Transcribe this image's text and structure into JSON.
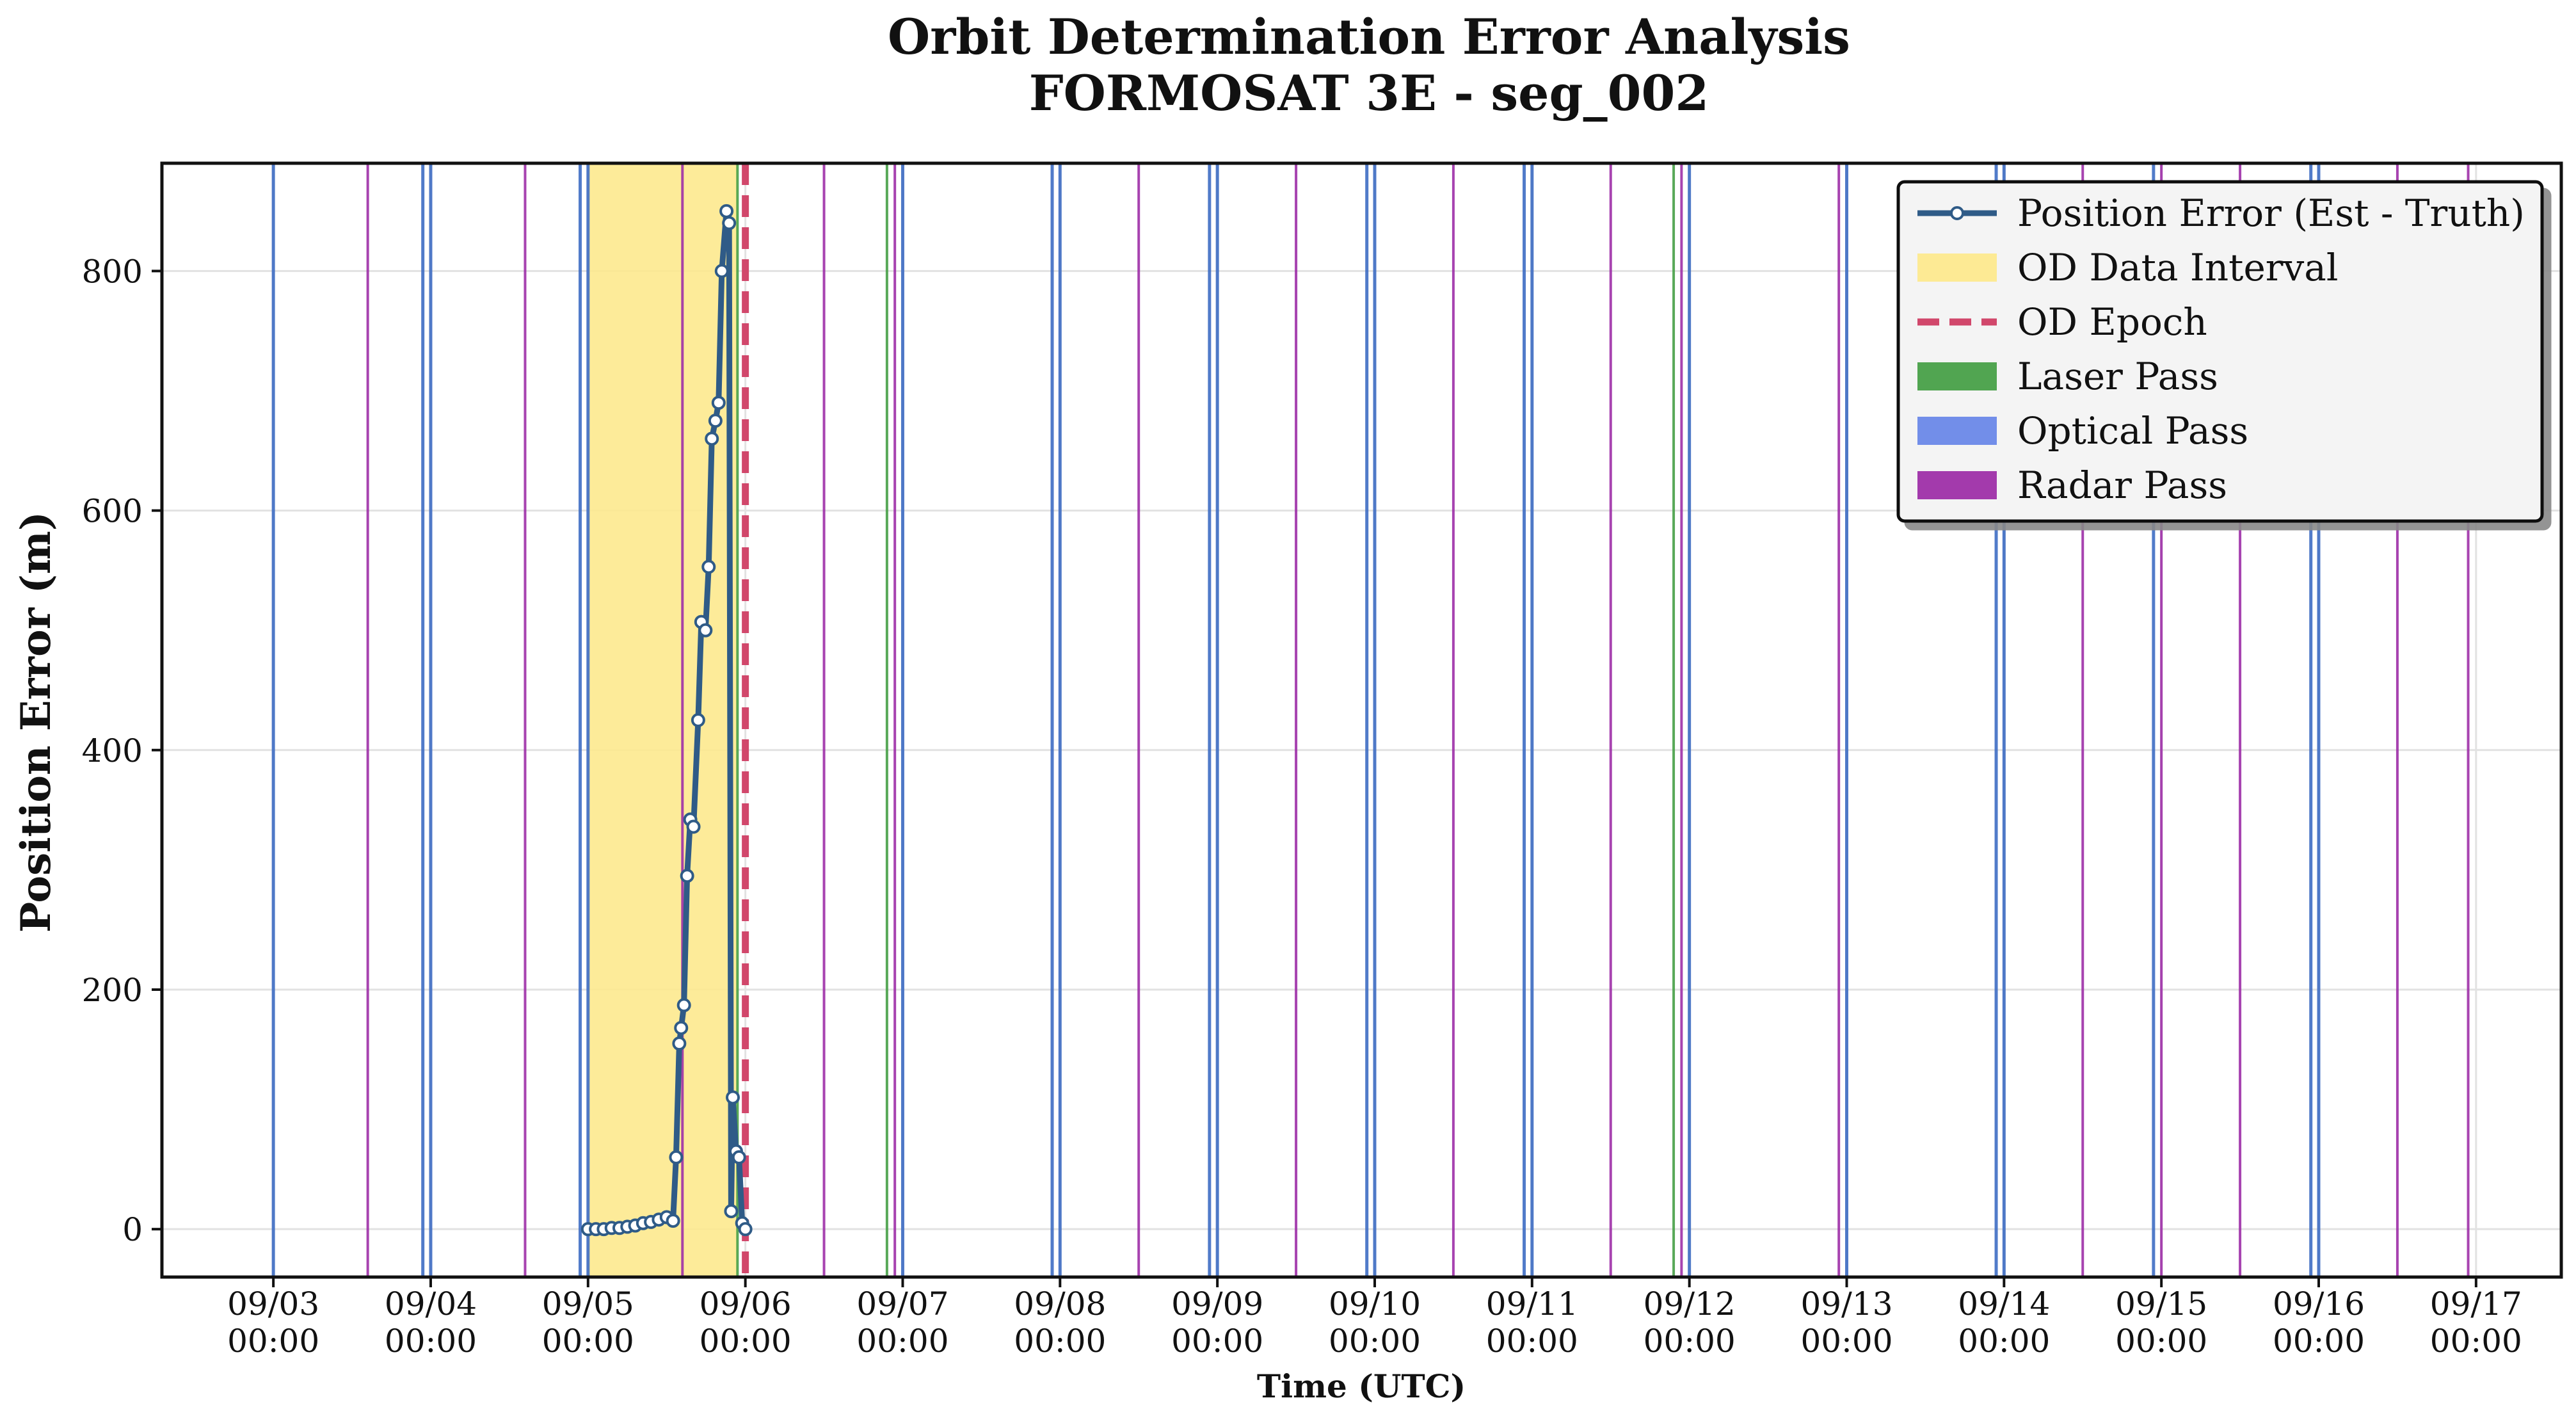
{
  "chart_data": {
    "type": "line",
    "title": "Orbit Determination Error Analysis",
    "subtitle": "FORMOSAT 3E - seg_002",
    "xlabel": "Time (UTC)",
    "ylabel": "Position Error (m)",
    "x_axis": {
      "type": "date",
      "start": "2024-09-02T07:00",
      "end": "2024-09-17T13:00"
    },
    "ylim": [
      -40,
      890
    ],
    "y_ticks": [
      0,
      200,
      400,
      600,
      800
    ],
    "x_ticks": [
      {
        "time": "2024-09-03T00:00",
        "date_label": "09/03",
        "time_label": "00:00"
      },
      {
        "time": "2024-09-04T00:00",
        "date_label": "09/04",
        "time_label": "00:00"
      },
      {
        "time": "2024-09-05T00:00",
        "date_label": "09/05",
        "time_label": "00:00"
      },
      {
        "time": "2024-09-06T00:00",
        "date_label": "09/06",
        "time_label": "00:00"
      },
      {
        "time": "2024-09-07T00:00",
        "date_label": "09/07",
        "time_label": "00:00"
      },
      {
        "time": "2024-09-08T00:00",
        "date_label": "09/08",
        "time_label": "00:00"
      },
      {
        "time": "2024-09-09T00:00",
        "date_label": "09/09",
        "time_label": "00:00"
      },
      {
        "time": "2024-09-10T00:00",
        "date_label": "09/10",
        "time_label": "00:00"
      },
      {
        "time": "2024-09-11T00:00",
        "date_label": "09/11",
        "time_label": "00:00"
      },
      {
        "time": "2024-09-12T00:00",
        "date_label": "09/12",
        "time_label": "00:00"
      },
      {
        "time": "2024-09-13T00:00",
        "date_label": "09/13",
        "time_label": "00:00"
      },
      {
        "time": "2024-09-14T00:00",
        "date_label": "09/14",
        "time_label": "00:00"
      },
      {
        "time": "2024-09-15T00:00",
        "date_label": "09/15",
        "time_label": "00:00"
      },
      {
        "time": "2024-09-16T00:00",
        "date_label": "09/16",
        "time_label": "00:00"
      },
      {
        "time": "2024-09-17T00:00",
        "date_label": "09/17",
        "time_label": "00:00"
      }
    ],
    "grid": true,
    "legend_position": "top-right",
    "legend": [
      {
        "label": "Position Error (Est - Truth)",
        "kind": "line-marker",
        "color": "#2f5b87"
      },
      {
        "label": "OD Data Interval",
        "kind": "patch",
        "color": "#fde98e"
      },
      {
        "label": "OD Epoch",
        "kind": "dashed-line",
        "color": "#d1476b"
      },
      {
        "label": "Laser Pass",
        "kind": "patch",
        "color": "#48a048"
      },
      {
        "label": "Optical Pass",
        "kind": "patch",
        "color": "#6a88e8"
      },
      {
        "label": "Radar Pass",
        "kind": "patch",
        "color": "#9e2fa8"
      }
    ],
    "od_data_interval": {
      "start": "2024-09-05T00:00",
      "end": "2024-09-05T22:48"
    },
    "od_epoch": "2024-09-06T00:00",
    "passes": {
      "optical": [
        "2024-09-03T00:00",
        "2024-09-03T22:48",
        "2024-09-04T00:00",
        "2024-09-04T22:48",
        "2024-09-05T00:00",
        "2024-09-07T00:00",
        "2024-09-07T22:48",
        "2024-09-08T00:00",
        "2024-09-08T22:48",
        "2024-09-09T00:00",
        "2024-09-09T22:48",
        "2024-09-10T00:00",
        "2024-09-10T22:48",
        "2024-09-11T00:00",
        "2024-09-12T00:00",
        "2024-09-13T00:00",
        "2024-09-13T22:48",
        "2024-09-14T00:00",
        "2024-09-14T22:48",
        "2024-09-15T22:48",
        "2024-09-16T00:00"
      ],
      "radar": [
        "2024-09-03T14:24",
        "2024-09-04T14:24",
        "2024-09-05T14:24",
        "2024-09-06T12:00",
        "2024-09-06T22:48",
        "2024-09-08T12:00",
        "2024-09-09T12:00",
        "2024-09-10T12:00",
        "2024-09-11T12:00",
        "2024-09-11T22:48",
        "2024-09-12T22:48",
        "2024-09-14T12:00",
        "2024-09-15T00:00",
        "2024-09-15T12:00",
        "2024-09-16T12:00",
        "2024-09-16T22:48"
      ],
      "laser": [
        "2024-09-05T22:48",
        "2024-09-06T21:36",
        "2024-09-11T21:36"
      ]
    },
    "series": [
      {
        "name": "Position Error (Est - Truth)",
        "x": [
          "2024-09-05T00:00",
          "2024-09-05T01:12",
          "2024-09-05T02:24",
          "2024-09-05T03:36",
          "2024-09-05T04:48",
          "2024-09-05T06:00",
          "2024-09-05T07:12",
          "2024-09-05T08:24",
          "2024-09-05T09:36",
          "2024-09-05T10:48",
          "2024-09-05T12:00",
          "2024-09-05T12:58",
          "2024-09-05T13:26",
          "2024-09-05T13:55",
          "2024-09-05T14:12",
          "2024-09-05T14:38",
          "2024-09-05T15:07",
          "2024-09-05T15:36",
          "2024-09-05T16:05",
          "2024-09-05T16:48",
          "2024-09-05T17:17",
          "2024-09-05T17:55",
          "2024-09-05T18:24",
          "2024-09-05T18:53",
          "2024-09-05T19:26",
          "2024-09-05T19:55",
          "2024-09-05T20:24",
          "2024-09-05T21:07",
          "2024-09-05T21:31",
          "2024-09-05T21:50",
          "2024-09-05T22:05",
          "2024-09-05T22:34",
          "2024-09-05T23:02",
          "2024-09-05T23:31",
          "2024-09-06T00:00"
        ],
        "y": [
          0,
          0,
          0,
          1,
          1,
          2,
          3,
          5,
          6,
          8,
          10,
          7,
          60,
          155,
          168,
          187,
          295,
          342,
          336,
          425,
          507,
          500,
          553,
          660,
          675,
          690,
          800,
          850,
          840,
          15,
          110,
          65,
          60,
          5,
          0
        ]
      }
    ]
  }
}
